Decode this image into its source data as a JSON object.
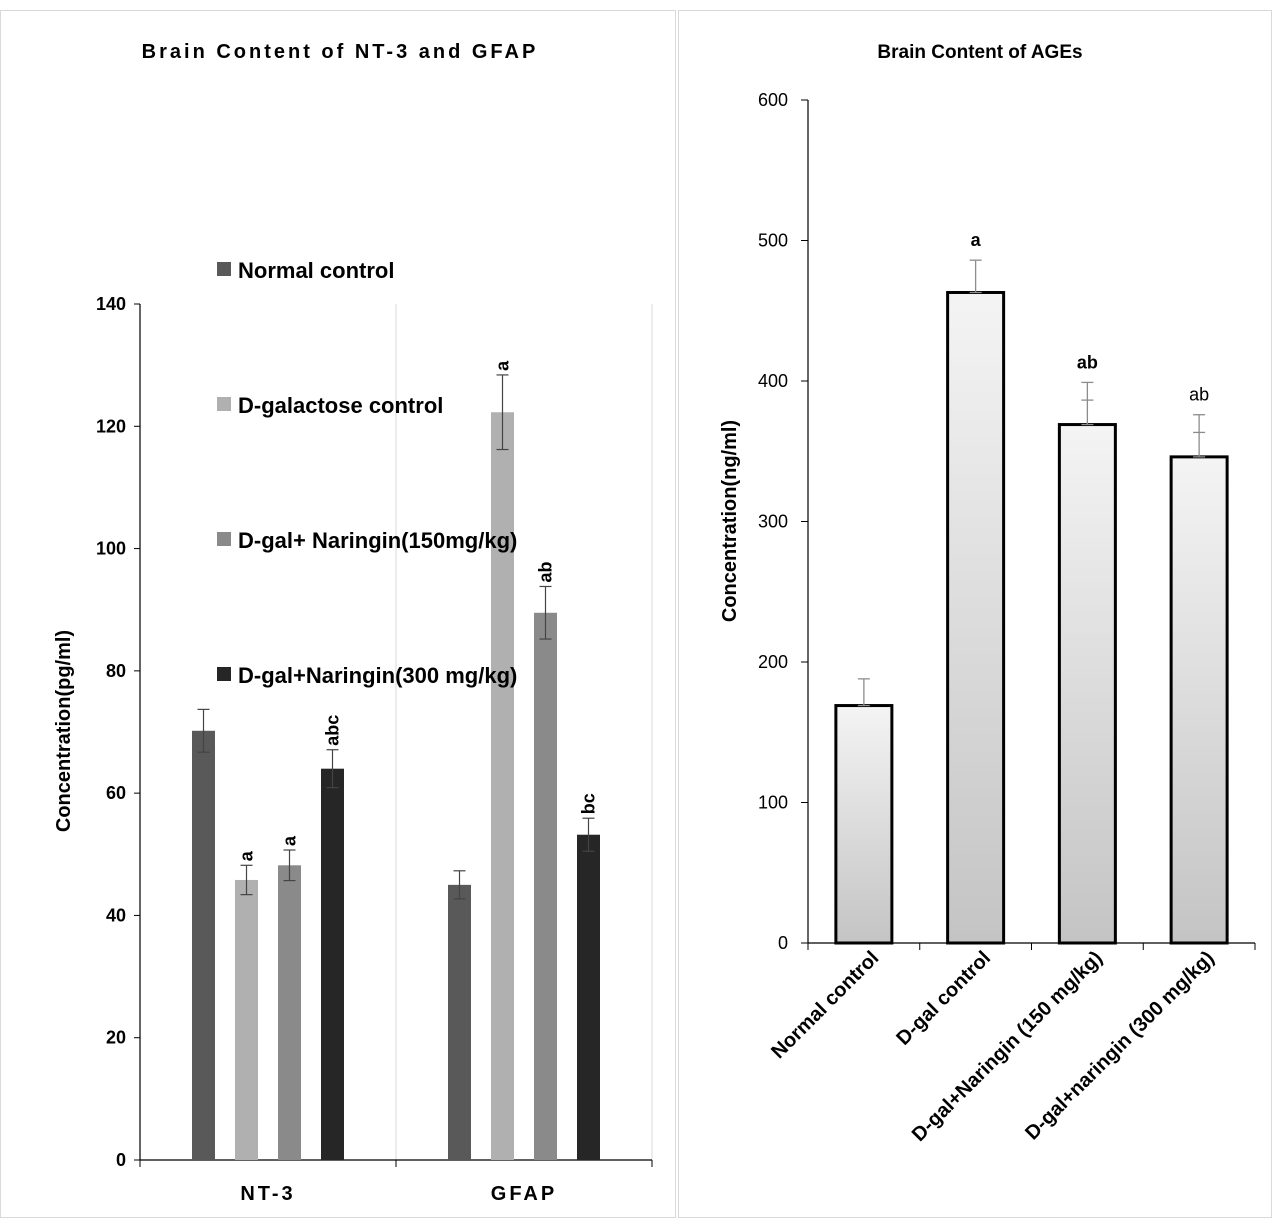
{
  "chart_data": [
    {
      "type": "bar",
      "title": "Brain Content of NT-3 and GFAP",
      "ylabel": "Concentration(pg/ml)",
      "xlabel": "",
      "ylim": [
        0,
        140
      ],
      "yticks": [
        0,
        20,
        40,
        60,
        80,
        100,
        120,
        140
      ],
      "categories": [
        "NT-3",
        "GFAP"
      ],
      "legend_position": "upper-left inside plot",
      "series": [
        {
          "name": "Normal control",
          "color": "#595959",
          "values": [
            70.2,
            45.0
          ],
          "errors": [
            3.5,
            2.3
          ],
          "labels": [
            "",
            ""
          ]
        },
        {
          "name": "D-galactose control",
          "color": "#b0b0b0",
          "values": [
            45.8,
            122.3
          ],
          "errors": [
            2.4,
            6.1
          ],
          "labels": [
            "a",
            "a"
          ]
        },
        {
          "name": "D-gal+ Naringin(150mg/kg)",
          "color": "#8a8a8a",
          "values": [
            48.2,
            89.5
          ],
          "errors": [
            2.5,
            4.3
          ],
          "labels": [
            "a",
            "ab"
          ]
        },
        {
          "name": "D-gal+Naringin(300 mg/kg)",
          "color": "#262626",
          "values": [
            64.0,
            53.2
          ],
          "errors": [
            3.1,
            2.7
          ],
          "labels": [
            "abc",
            "bc"
          ]
        }
      ]
    },
    {
      "type": "bar",
      "title": "Brain Content of AGEs",
      "ylabel": "Concentration(ng/ml)",
      "xlabel": "",
      "ylim": [
        0,
        600
      ],
      "yticks": [
        0,
        100,
        200,
        300,
        400,
        500,
        600
      ],
      "categories": [
        "Normal control",
        "D-gal control",
        "D-gal+Naringin (150  mg/kg)",
        "D-gal+naringin (300 mg/kg)"
      ],
      "values": [
        169,
        463,
        369,
        346
      ],
      "errors": [
        19,
        23,
        30,
        30
      ],
      "labels": [
        "",
        "a",
        "ab",
        "ab"
      ],
      "label_bold": [
        false,
        true,
        true,
        false
      ]
    }
  ]
}
